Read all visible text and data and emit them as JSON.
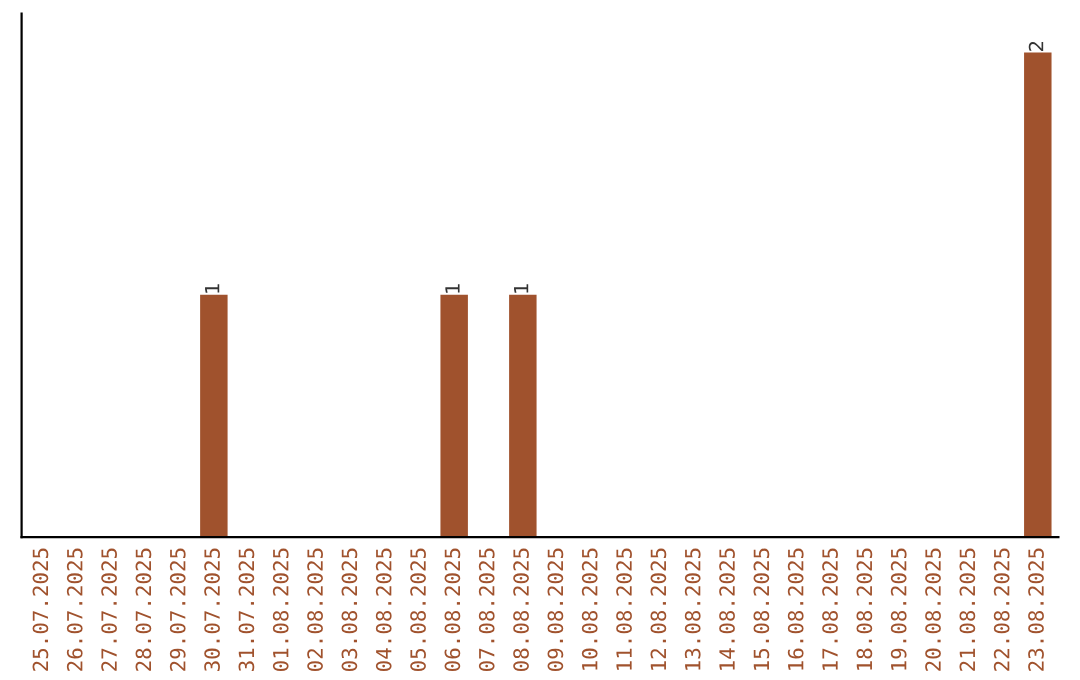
{
  "chart_data": {
    "type": "bar",
    "categories": [
      "25.07.2025",
      "26.07.2025",
      "27.07.2025",
      "28.07.2025",
      "29.07.2025",
      "30.07.2025",
      "31.07.2025",
      "01.08.2025",
      "02.08.2025",
      "03.08.2025",
      "04.08.2025",
      "05.08.2025",
      "06.08.2025",
      "07.08.2025",
      "08.08.2025",
      "09.08.2025",
      "10.08.2025",
      "11.08.2025",
      "12.08.2025",
      "13.08.2025",
      "14.08.2025",
      "15.08.2025",
      "16.08.2025",
      "17.08.2025",
      "18.08.2025",
      "19.08.2025",
      "20.08.2025",
      "21.08.2025",
      "22.08.2025",
      "23.08.2025"
    ],
    "values": [
      0,
      0,
      0,
      0,
      0,
      1,
      0,
      0,
      0,
      0,
      0,
      0,
      1,
      0,
      1,
      0,
      0,
      0,
      0,
      0,
      0,
      0,
      0,
      0,
      0,
      0,
      0,
      0,
      0,
      2
    ],
    "value_labels": [
      null,
      null,
      null,
      null,
      null,
      "1",
      null,
      null,
      null,
      null,
      null,
      null,
      "1",
      null,
      "1",
      null,
      null,
      null,
      null,
      null,
      null,
      null,
      null,
      null,
      null,
      null,
      null,
      null,
      null,
      "2"
    ],
    "color": "#a0522d",
    "tick_labels": "x",
    "grid": false
  }
}
